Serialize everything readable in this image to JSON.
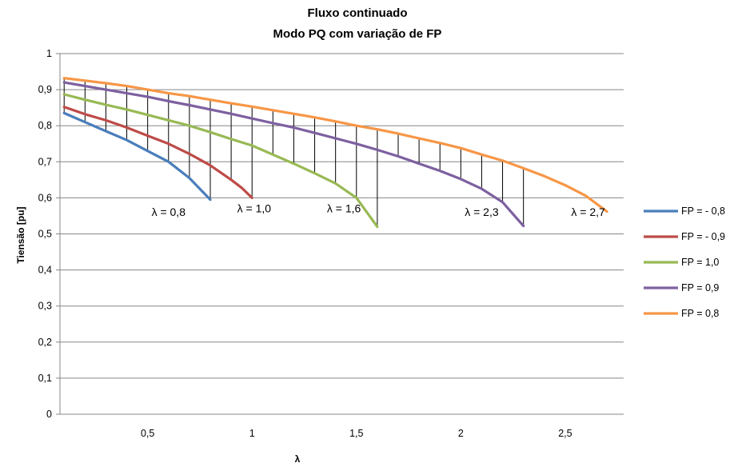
{
  "chart_data": {
    "type": "line",
    "title": "Fluxo continuado",
    "subtitle": "Modo PQ com variação de FP",
    "xlabel": "λ",
    "ylabel": "Tiensão  [pu]",
    "xlim": [
      0.08,
      2.78
    ],
    "ylim": [
      0,
      1
    ],
    "x_ticks": [
      0.5,
      1,
      1.5,
      2,
      2.5
    ],
    "x_tick_labels": [
      "0,5",
      "1",
      "1,5",
      "2",
      "2,5"
    ],
    "y_ticks": [
      0,
      0.1,
      0.2,
      0.3,
      0.4,
      0.5,
      0.6,
      0.7,
      0.8,
      0.9,
      1
    ],
    "y_tick_labels": [
      "0",
      "0,1",
      "0,2",
      "0,3",
      "0,4",
      "0,5",
      "0,6",
      "0,7",
      "0,8",
      "0,9",
      "1"
    ],
    "grid": "horizontal",
    "legend_position": "right",
    "series": [
      {
        "name": "FP = - 0,8",
        "color": "#4a7ebb",
        "x": [
          0.1,
          0.2,
          0.3,
          0.4,
          0.5,
          0.6,
          0.7,
          0.75,
          0.8
        ],
        "y": [
          0.835,
          0.81,
          0.785,
          0.76,
          0.73,
          0.7,
          0.655,
          0.625,
          0.595
        ]
      },
      {
        "name": "FP = - 0,9",
        "color": "#be4b48",
        "x": [
          0.1,
          0.2,
          0.3,
          0.4,
          0.5,
          0.6,
          0.7,
          0.8,
          0.9,
          0.95,
          1.0
        ],
        "y": [
          0.852,
          0.832,
          0.815,
          0.795,
          0.772,
          0.75,
          0.722,
          0.69,
          0.65,
          0.628,
          0.6
        ]
      },
      {
        "name": "FP =   1,0",
        "color": "#98b954",
        "x": [
          0.1,
          0.2,
          0.3,
          0.4,
          0.5,
          0.6,
          0.7,
          0.8,
          0.9,
          1.0,
          1.1,
          1.2,
          1.3,
          1.4,
          1.5,
          1.55,
          1.6
        ],
        "y": [
          0.887,
          0.872,
          0.858,
          0.845,
          0.83,
          0.815,
          0.8,
          0.782,
          0.763,
          0.745,
          0.72,
          0.695,
          0.668,
          0.64,
          0.6,
          0.56,
          0.52
        ]
      },
      {
        "name": "FP =  0,9",
        "color": "#7d60a0",
        "x": [
          0.1,
          0.2,
          0.3,
          0.4,
          0.5,
          0.6,
          0.7,
          0.8,
          0.9,
          1.0,
          1.1,
          1.2,
          1.3,
          1.4,
          1.5,
          1.6,
          1.7,
          1.8,
          1.9,
          2.0,
          2.1,
          2.2,
          2.25,
          2.3
        ],
        "y": [
          0.92,
          0.91,
          0.9,
          0.89,
          0.88,
          0.868,
          0.857,
          0.845,
          0.833,
          0.82,
          0.807,
          0.795,
          0.78,
          0.765,
          0.75,
          0.733,
          0.715,
          0.695,
          0.675,
          0.652,
          0.625,
          0.588,
          0.555,
          0.522
        ]
      },
      {
        "name": "FP =  0,8",
        "color": "#f79646",
        "x": [
          0.1,
          0.2,
          0.3,
          0.4,
          0.5,
          0.6,
          0.7,
          0.8,
          0.9,
          1.0,
          1.1,
          1.2,
          1.3,
          1.4,
          1.5,
          1.6,
          1.7,
          1.8,
          1.9,
          2.0,
          2.1,
          2.2,
          2.3,
          2.4,
          2.5,
          2.6,
          2.7
        ],
        "y": [
          0.932,
          0.925,
          0.918,
          0.91,
          0.9,
          0.89,
          0.882,
          0.872,
          0.862,
          0.853,
          0.843,
          0.833,
          0.823,
          0.812,
          0.8,
          0.79,
          0.778,
          0.765,
          0.752,
          0.738,
          0.72,
          0.703,
          0.682,
          0.66,
          0.635,
          0.605,
          0.562
        ]
      }
    ],
    "hatch_x": [
      0.1,
      0.2,
      0.3,
      0.4,
      0.5,
      0.6,
      0.7,
      0.8,
      0.9,
      1.0,
      1.1,
      1.2,
      1.3,
      1.4,
      1.5,
      1.6,
      1.7,
      1.8,
      1.9,
      2.0,
      2.1,
      2.2,
      2.3
    ],
    "annotations": [
      {
        "text": "λ = 0,8",
        "x": 0.6,
        "y": 0.55
      },
      {
        "text": "λ = 1,0",
        "x": 1.01,
        "y": 0.56
      },
      {
        "text": "λ = 1,6",
        "x": 1.44,
        "y": 0.56
      },
      {
        "text": "λ = 2,3",
        "x": 2.1,
        "y": 0.55
      },
      {
        "text": "λ = 2,7",
        "x": 2.61,
        "y": 0.55
      }
    ]
  }
}
